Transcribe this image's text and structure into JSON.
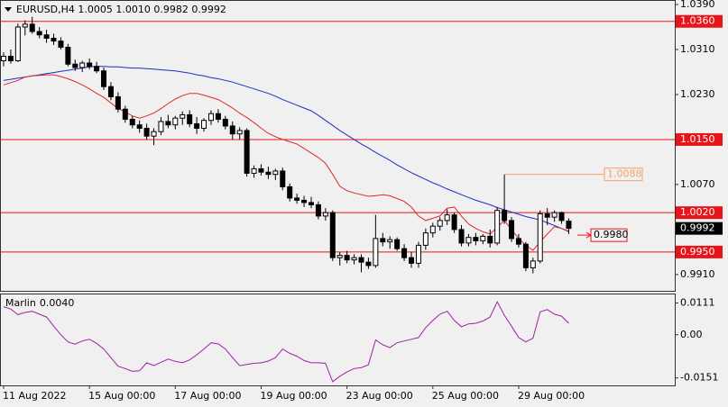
{
  "chart_data": [
    {
      "type": "candlestick",
      "title": "EURUSD,H4 1.0005 1.0010 0.9982 0.9992",
      "categories": [
        "11 Aug 2022",
        null,
        null,
        null,
        null,
        null,
        null,
        null,
        null,
        null,
        null,
        null,
        "15 Aug 00:00",
        null,
        null,
        null,
        null,
        null,
        null,
        null,
        null,
        null,
        null,
        null,
        "17 Aug 00:00",
        null,
        null,
        null,
        null,
        null,
        null,
        null,
        null,
        null,
        null,
        null,
        "19 Aug 00:00",
        null,
        null,
        null,
        null,
        null,
        null,
        null,
        null,
        null,
        null,
        null,
        "23 Aug 00:00",
        null,
        null,
        null,
        null,
        null,
        null,
        null,
        null,
        null,
        null,
        null,
        "25 Aug 00:00",
        null,
        null,
        null,
        null,
        null,
        null,
        null,
        null,
        null,
        null,
        null,
        "29 Aug 00:00",
        null,
        null,
        null,
        null,
        null,
        null,
        null
      ],
      "open": [
        1.029,
        1.0298,
        1.029,
        1.035,
        1.0355,
        1.0342,
        1.0336,
        1.033,
        1.0325,
        1.0314,
        1.0284,
        1.0278,
        1.0286,
        1.028,
        1.0272,
        1.0244,
        1.0226,
        1.0204,
        1.0186,
        1.0176,
        1.017,
        1.0156,
        1.0164,
        1.0182,
        1.0176,
        1.0188,
        1.0194,
        1.0178,
        1.017,
        1.0184,
        1.0196,
        1.0186,
        1.0174,
        1.016,
        1.0166,
        1.009,
        1.0098,
        1.0092,
        1.0088,
        1.0094,
        1.0066,
        1.0046,
        1.0042,
        1.0038,
        1.0034,
        1.0014,
        1.002,
        0.994,
        0.9944,
        0.9936,
        0.994,
        0.9932,
        0.9926,
        0.9974,
        0.9968,
        0.9972,
        0.9956,
        0.994,
        0.993,
        0.9962,
        0.9984,
        0.9996,
        1.0006,
        1.0016,
        0.999,
        0.9966,
        0.9976,
        0.997,
        0.9978,
        0.9966,
        1.0024,
        1.0006,
        0.9974,
        0.9964,
        0.9922,
        0.9934,
        1.0018,
        1.0012,
        1.002,
        1.0005
      ],
      "high": [
        1.0305,
        1.031,
        1.0356,
        1.0362,
        1.0368,
        1.035,
        1.0345,
        1.0338,
        1.0332,
        1.032,
        1.0292,
        1.029,
        1.0294,
        1.0288,
        1.0278,
        1.0252,
        1.0234,
        1.021,
        1.0192,
        1.0184,
        1.0178,
        1.017,
        1.019,
        1.0194,
        1.0192,
        1.02,
        1.0202,
        1.019,
        1.0188,
        1.0202,
        1.0204,
        1.0192,
        1.0182,
        1.0172,
        1.017,
        1.0104,
        1.0106,
        1.0102,
        1.0098,
        1.01,
        1.0072,
        1.0054,
        1.005,
        1.0048,
        1.004,
        1.0028,
        1.0024,
        0.995,
        0.9952,
        0.9946,
        0.9946,
        0.994,
        1.0016,
        0.9984,
        0.9978,
        0.9976,
        0.9964,
        0.995,
        0.9968,
        0.9992,
        1.0002,
        1.0012,
        1.0026,
        1.002,
        0.9998,
        0.9982,
        0.9984,
        0.9982,
        0.999,
        1.003,
        1.0088,
        1.0012,
        0.9982,
        0.9968,
        0.994,
        1.0024,
        1.0028,
        1.0024,
        1.0022,
        1.001
      ],
      "low": [
        1.028,
        1.0285,
        1.0288,
        1.0335,
        1.0338,
        1.033,
        1.0322,
        1.0318,
        1.031,
        1.028,
        1.0272,
        1.027,
        1.0275,
        1.0268,
        1.0238,
        1.022,
        1.0198,
        1.018,
        1.017,
        1.0162,
        1.015,
        1.014,
        1.0158,
        1.017,
        1.0168,
        1.0176,
        1.0172,
        1.016,
        1.0164,
        1.0176,
        1.018,
        1.0168,
        1.015,
        1.015,
        1.0084,
        1.0082,
        1.0086,
        1.008,
        1.0078,
        1.006,
        1.004,
        1.0036,
        1.003,
        1.0028,
        1.0008,
        1.0006,
        0.9934,
        0.9926,
        0.993,
        0.9928,
        0.9914,
        0.992,
        0.9922,
        0.996,
        0.9956,
        0.9952,
        0.9934,
        0.9922,
        0.9922,
        0.9954,
        0.9976,
        0.9988,
        0.9998,
        0.9984,
        0.996,
        0.996,
        0.9962,
        0.9964,
        0.9958,
        0.9962,
        1.0,
        0.9968,
        0.9958,
        0.9916,
        0.9912,
        0.993,
        0.9998,
        1.0004,
        1.0,
        0.9982
      ],
      "close": [
        1.0298,
        1.029,
        1.035,
        1.0355,
        1.0342,
        1.0336,
        1.033,
        1.0325,
        1.0314,
        1.0284,
        1.0278,
        1.0286,
        1.028,
        1.0272,
        1.0244,
        1.0226,
        1.0204,
        1.0186,
        1.0176,
        1.017,
        1.0156,
        1.0164,
        1.0182,
        1.0176,
        1.0188,
        1.0194,
        1.0178,
        1.017,
        1.0184,
        1.0196,
        1.0186,
        1.0174,
        1.016,
        1.0166,
        1.009,
        1.0098,
        1.0092,
        1.0088,
        1.0094,
        1.0066,
        1.0046,
        1.0042,
        1.0038,
        1.0034,
        1.0014,
        1.002,
        0.994,
        0.9944,
        0.9936,
        0.994,
        0.9932,
        0.9926,
        0.9974,
        0.9968,
        0.9972,
        0.9956,
        0.994,
        0.993,
        0.9962,
        0.9984,
        0.9996,
        1.0006,
        1.0016,
        0.999,
        0.9966,
        0.9976,
        0.997,
        0.9978,
        0.9966,
        1.0024,
        1.0006,
        0.9974,
        0.9964,
        0.9922,
        0.9934,
        1.0018,
        1.0012,
        1.002,
        1.0006,
        0.9992
      ],
      "overlays": [
        {
          "color": "#1c2fc4",
          "values": [
            1.0255,
            1.0257,
            1.0259,
            1.0261,
            1.0263,
            1.0265,
            1.0267,
            1.0269,
            1.0271,
            1.0273,
            1.0275,
            1.0277,
            1.0279,
            1.028,
            1.028,
            1.0279,
            1.0279,
            1.0278,
            1.0277,
            1.0277,
            1.0276,
            1.0275,
            1.0274,
            1.0273,
            1.0272,
            1.027,
            1.0268,
            1.0265,
            1.0263,
            1.026,
            1.0258,
            1.0255,
            1.0252,
            1.0248,
            1.0244,
            1.024,
            1.0236,
            1.0232,
            1.0227,
            1.0221,
            1.0216,
            1.0211,
            1.0206,
            1.0201,
            1.0193,
            1.0184,
            1.0175,
            1.0166,
            1.0158,
            1.015,
            1.0142,
            1.0135,
            1.0127,
            1.012,
            1.0113,
            1.0105,
            1.0098,
            1.0091,
            1.0085,
            1.0079,
            1.0073,
            1.0068,
            1.0062,
            1.0057,
            1.0052,
            1.0047,
            1.0042,
            1.0038,
            1.0034,
            1.0029,
            1.0025,
            1.0021,
            1.0017,
            1.0013,
            1.001,
            1.0007,
            1.0002,
            0.9997,
            0.9992,
            0.9987
          ]
        },
        {
          "color": "#e02828",
          "values": [
            1.0247,
            1.0251,
            1.0255,
            1.0261,
            1.0263,
            1.0264,
            1.0265,
            1.0265,
            1.0262,
            1.0258,
            1.0253,
            1.0247,
            1.024,
            1.0232,
            1.0225,
            1.0215,
            1.0205,
            1.0199,
            1.0192,
            1.0188,
            1.0192,
            1.0197,
            1.0205,
            1.0214,
            1.0222,
            1.0228,
            1.0232,
            1.0232,
            1.0229,
            1.0225,
            1.0221,
            1.0214,
            1.0206,
            1.0197,
            1.0189,
            1.018,
            1.017,
            1.0161,
            1.0155,
            1.015,
            1.0146,
            1.0142,
            1.0134,
            1.0126,
            1.0118,
            1.0108,
            1.0088,
            1.0067,
            1.0059,
            1.0055,
            1.0052,
            1.0049,
            1.005,
            1.0052,
            1.005,
            1.0045,
            1.004,
            1.003,
            1.0014,
            1.0006,
            1.001,
            1.0014,
            1.0028,
            1.003,
            1.0014,
            1.0,
            0.9992,
            0.9986,
            0.9982,
            0.9994,
            1.0006,
            0.999,
            0.9974,
            0.9962,
            0.9953,
            0.9968,
            0.9982,
            0.9995,
            0.9992,
            0.9986
          ]
        }
      ],
      "ylim": [
        0.9881,
        1.0398
      ],
      "yticks": [
        {
          "value": 1.039,
          "label": "1.0390"
        },
        {
          "value": 1.031,
          "label": "1.0310"
        },
        {
          "value": 1.023,
          "label": "1.0230"
        },
        {
          "value": 1.007,
          "label": "1.0070"
        },
        {
          "value": 0.991,
          "label": "0.9910"
        }
      ],
      "levels": [
        {
          "value": 1.036,
          "label": "1.0360"
        },
        {
          "value": 1.015,
          "label": "1.0150"
        },
        {
          "value": 1.002,
          "label": "1.0020"
        },
        {
          "value": 0.995,
          "label": "0.9950"
        }
      ],
      "level_color": "#e8141a",
      "annotations": [
        {
          "value": 1.0088,
          "label": "1.0088",
          "color": "#f4a070"
        },
        {
          "value": 0.998,
          "label": "0.9980",
          "color": "#e8141a"
        }
      ]
    },
    {
      "type": "line",
      "name": "Marlin",
      "value_label": "0.0040",
      "color": "#a020a8",
      "values": [
        0.0098,
        0.009,
        0.007,
        0.0078,
        0.0082,
        0.0072,
        0.0062,
        0.003,
        0.0,
        -0.0025,
        -0.0033,
        -0.0022,
        -0.0016,
        -0.003,
        -0.005,
        -0.008,
        -0.011,
        -0.0118,
        -0.0128,
        -0.0126,
        -0.0098,
        -0.0108,
        -0.0096,
        -0.0085,
        -0.0093,
        -0.0098,
        -0.0088,
        -0.007,
        -0.005,
        -0.0028,
        -0.0032,
        -0.005,
        -0.008,
        -0.0108,
        -0.0104,
        -0.01,
        -0.0098,
        -0.0092,
        -0.008,
        -0.005,
        -0.0065,
        -0.0075,
        -0.009,
        -0.0098,
        -0.0098,
        -0.01,
        -0.0164,
        -0.0145,
        -0.013,
        -0.0118,
        -0.0115,
        -0.0105,
        -0.0018,
        -0.0035,
        -0.0045,
        -0.0028,
        -0.0022,
        -0.0016,
        -0.001,
        0.0025,
        0.005,
        0.0072,
        0.0082,
        0.005,
        0.0028,
        0.0038,
        0.004,
        0.0048,
        0.0062,
        0.0115,
        0.0068,
        0.003,
        -0.001,
        -0.0025,
        -0.0012,
        0.008,
        0.0088,
        0.0072,
        0.0065,
        0.004
      ],
      "ylim": [
        -0.0177,
        0.0144
      ],
      "yticks": [
        0.0111,
        {
          "value": 0,
          "label": "0.00"
        },
        -0.0151
      ]
    }
  ]
}
